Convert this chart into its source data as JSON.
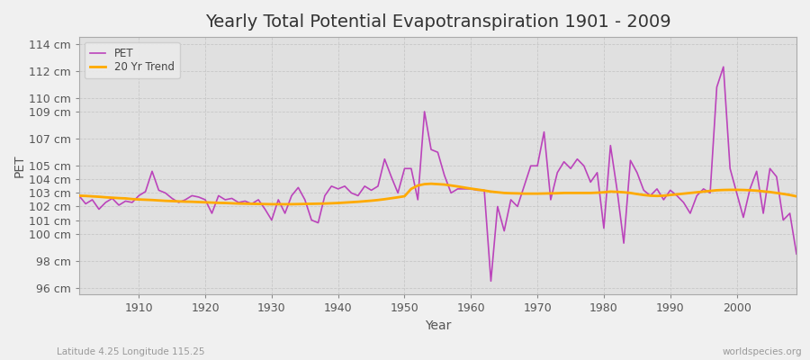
{
  "title": "Yearly Total Potential Evapotranspiration 1901 - 2009",
  "xlabel": "Year",
  "ylabel": "PET",
  "subtitle": "Latitude 4.25 Longitude 115.25",
  "watermark": "worldspecies.org",
  "pet_color": "#bb44bb",
  "trend_color": "#ffaa00",
  "fig_bg_color": "#f0f0f0",
  "plot_bg_color": "#e0e0e0",
  "years": [
    1901,
    1902,
    1903,
    1904,
    1905,
    1906,
    1907,
    1908,
    1909,
    1910,
    1911,
    1912,
    1913,
    1914,
    1915,
    1916,
    1917,
    1918,
    1919,
    1920,
    1921,
    1922,
    1923,
    1924,
    1925,
    1926,
    1927,
    1928,
    1929,
    1930,
    1931,
    1932,
    1933,
    1934,
    1935,
    1936,
    1937,
    1938,
    1939,
    1940,
    1941,
    1942,
    1943,
    1944,
    1945,
    1946,
    1947,
    1948,
    1949,
    1950,
    1951,
    1952,
    1953,
    1954,
    1955,
    1956,
    1957,
    1958,
    1959,
    1960,
    1961,
    1962,
    1963,
    1964,
    1965,
    1966,
    1967,
    1968,
    1969,
    1970,
    1971,
    1972,
    1973,
    1974,
    1975,
    1976,
    1977,
    1978,
    1979,
    1980,
    1981,
    1982,
    1983,
    1984,
    1985,
    1986,
    1987,
    1988,
    1989,
    1990,
    1991,
    1992,
    1993,
    1994,
    1995,
    1996,
    1997,
    1998,
    1999,
    2000,
    2001,
    2002,
    2003,
    2004,
    2005,
    2006,
    2007,
    2008,
    2009
  ],
  "pet_values": [
    102.8,
    102.2,
    102.5,
    101.8,
    102.3,
    102.6,
    102.1,
    102.4,
    102.3,
    102.8,
    103.1,
    104.6,
    103.2,
    103.0,
    102.6,
    102.3,
    102.5,
    102.8,
    102.7,
    102.5,
    101.5,
    102.8,
    102.5,
    102.6,
    102.3,
    102.4,
    102.2,
    102.5,
    101.8,
    101.0,
    102.5,
    101.5,
    102.8,
    103.4,
    102.5,
    101.0,
    100.8,
    102.8,
    103.5,
    103.3,
    103.5,
    103.0,
    102.8,
    103.5,
    103.2,
    103.5,
    105.5,
    104.2,
    103.0,
    104.8,
    104.8,
    102.5,
    109.0,
    106.2,
    106.0,
    104.3,
    103.0,
    103.3,
    103.3,
    103.3,
    103.2,
    103.2,
    96.5,
    102.0,
    100.2,
    102.5,
    102.0,
    103.5,
    105.0,
    105.0,
    107.5,
    102.5,
    104.5,
    105.3,
    104.8,
    105.5,
    105.0,
    103.8,
    104.5,
    100.4,
    106.5,
    103.2,
    99.3,
    105.4,
    104.5,
    103.2,
    102.8,
    103.3,
    102.5,
    103.2,
    102.8,
    102.3,
    101.5,
    102.8,
    103.3,
    103.0,
    110.8,
    112.3,
    104.8,
    103.0,
    101.2,
    103.3,
    104.6,
    101.5,
    104.8,
    104.2,
    101.0,
    101.5,
    98.5
  ],
  "trend_values": [
    102.8,
    102.78,
    102.75,
    102.72,
    102.68,
    102.65,
    102.62,
    102.6,
    102.55,
    102.52,
    102.5,
    102.48,
    102.45,
    102.42,
    102.4,
    102.38,
    102.36,
    102.35,
    102.33,
    102.31,
    102.29,
    102.27,
    102.26,
    102.24,
    102.22,
    102.21,
    102.2,
    102.19,
    102.18,
    102.17,
    102.17,
    102.17,
    102.17,
    102.18,
    102.19,
    102.2,
    102.21,
    102.22,
    102.24,
    102.26,
    102.29,
    102.32,
    102.35,
    102.39,
    102.43,
    102.48,
    102.54,
    102.61,
    102.68,
    102.76,
    103.3,
    103.55,
    103.65,
    103.68,
    103.65,
    103.62,
    103.55,
    103.48,
    103.4,
    103.32,
    103.25,
    103.18,
    103.1,
    103.05,
    103.0,
    102.98,
    102.97,
    102.95,
    102.95,
    102.95,
    102.96,
    102.97,
    102.98,
    103.0,
    103.0,
    103.0,
    103.0,
    103.0,
    103.02,
    103.05,
    103.1,
    103.08,
    103.05,
    103.0,
    102.92,
    102.85,
    102.8,
    102.78,
    102.8,
    102.85,
    102.9,
    102.95,
    103.0,
    103.05,
    103.1,
    103.15,
    103.2,
    103.22,
    103.23,
    103.23,
    103.22,
    103.2,
    103.17,
    103.12,
    103.07,
    103.0,
    102.93,
    102.85,
    102.75
  ],
  "ylim": [
    95.5,
    114.5
  ],
  "yticks": [
    96,
    98,
    100,
    101,
    102,
    103,
    104,
    105,
    107,
    109,
    110,
    112,
    114
  ],
  "ytick_labels": [
    "96 cm",
    "98 cm",
    "100 cm",
    "101 cm",
    "102 cm",
    "103 cm",
    "104 cm",
    "105 cm",
    "107 cm",
    "109 cm",
    "110 cm",
    "112 cm",
    "114 cm"
  ],
  "xticks": [
    1910,
    1920,
    1930,
    1940,
    1950,
    1960,
    1970,
    1980,
    1990,
    2000
  ],
  "grid_color": "#c8c8c8",
  "legend_entries": [
    "PET",
    "20 Yr Trend"
  ],
  "title_fontsize": 14,
  "tick_fontsize": 9,
  "label_fontsize": 10
}
